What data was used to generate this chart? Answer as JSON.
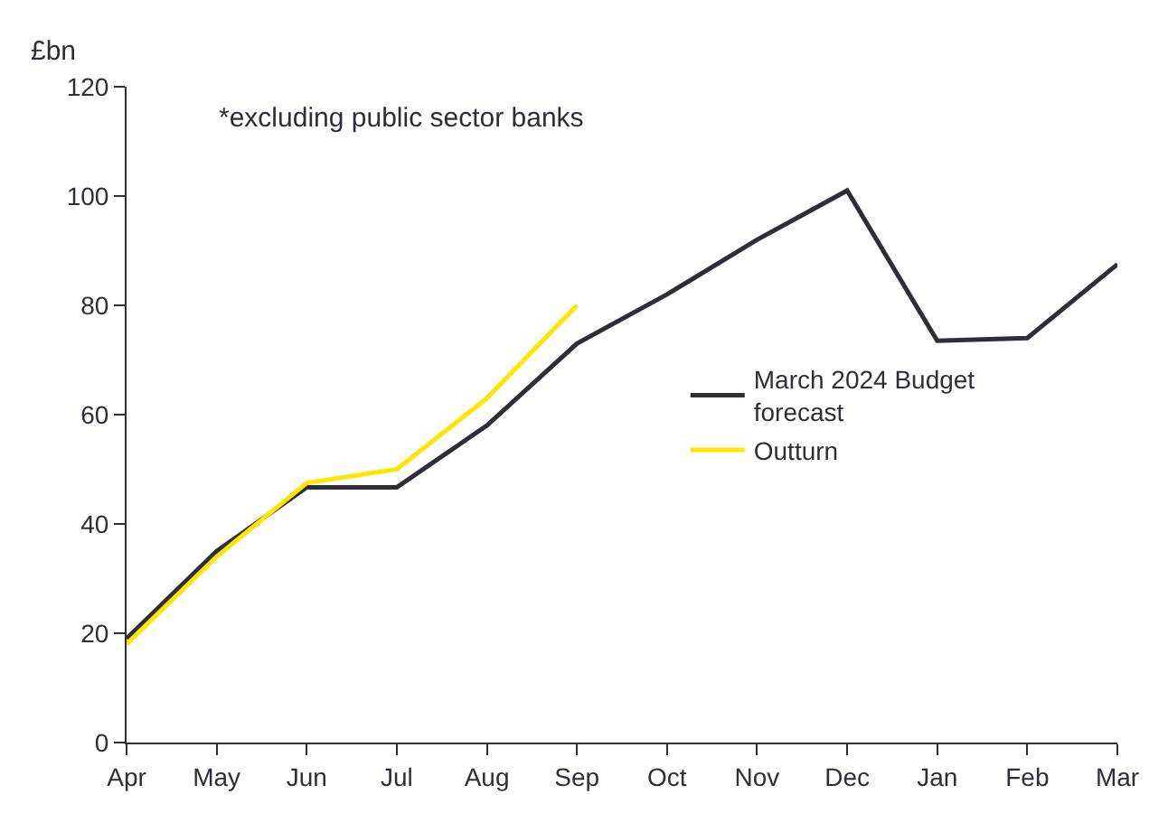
{
  "chart_data": {
    "type": "line",
    "ylabel": "£bn",
    "categories": [
      "Apr",
      "May",
      "Jun",
      "Jul",
      "Aug",
      "Sep",
      "Oct",
      "Nov",
      "Dec",
      "Jan",
      "Feb",
      "Mar"
    ],
    "series": [
      {
        "name": "March 2024 Budget forecast",
        "color": "#2e2e38",
        "values": [
          19,
          35,
          46.7,
          46.7,
          58,
          73,
          82,
          92,
          101,
          73.5,
          74,
          87.5
        ]
      },
      {
        "name": "Outturn",
        "color": "#ffe600",
        "values": [
          18,
          34,
          47.5,
          50,
          63,
          80,
          null,
          null,
          null,
          null,
          null,
          null
        ]
      }
    ],
    "ylim": [
      0,
      120
    ],
    "yticks": [
      0,
      20,
      40,
      60,
      80,
      100,
      120
    ],
    "legend": "right",
    "marker": "none",
    "line_style": "solid",
    "annotations": [
      "*excluding public sector banks"
    ]
  }
}
